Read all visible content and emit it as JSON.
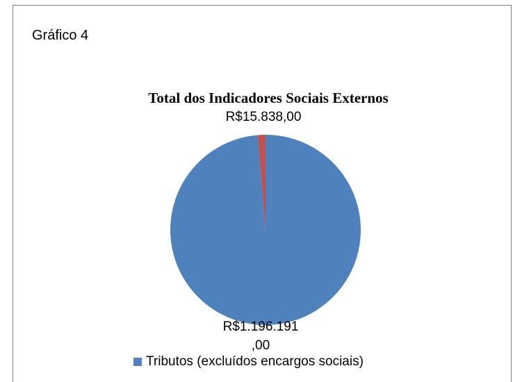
{
  "figure_label": "Gráfico 4",
  "chart_data": {
    "type": "pie",
    "title": "Total dos Indicadores Sociais Externos",
    "slices": [
      {
        "name": "Tributos (excluídos encargos sociais)",
        "value": 1196191.0,
        "label_line1": "R$1.196.191",
        "label_line2": ",00",
        "color": "#4f81bd"
      },
      {
        "name": "",
        "value": 15838.0,
        "label_line1": "R$15.838,00",
        "color": "#c0504d"
      }
    ],
    "legend": {
      "placement": "bottom",
      "entries": [
        "Tributos (excluídos encargos sociais)"
      ]
    }
  }
}
